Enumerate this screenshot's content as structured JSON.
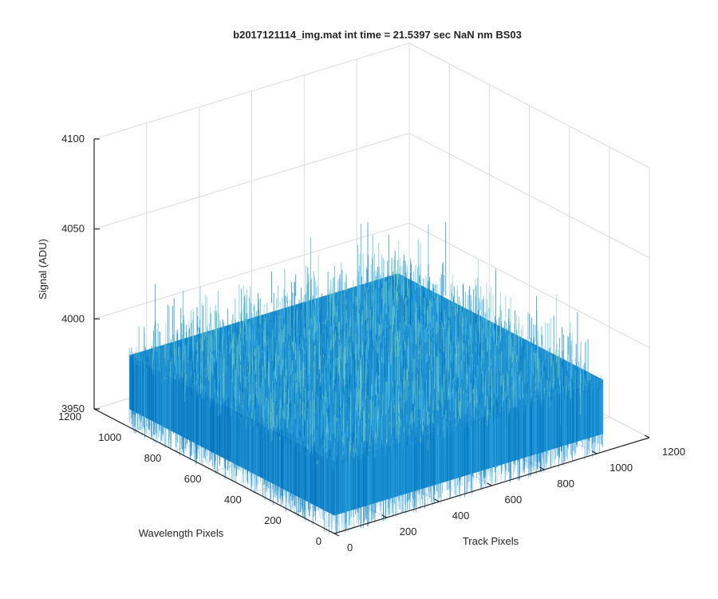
{
  "chart_data": {
    "type": "surface",
    "title": "b2017121114_img.mat int time = 21.5397 sec  NaN nm BS03",
    "xlabel": "Track Pixels",
    "ylabel": "Wavelength Pixels",
    "zlabel": "Signal (ADU)",
    "xlim": [
      0,
      1200
    ],
    "ylim": [
      0,
      1200
    ],
    "zlim": [
      3950,
      4100
    ],
    "x_ticks": [
      "0",
      "200",
      "400",
      "600",
      "800",
      "1000",
      "1200"
    ],
    "y_ticks": [
      "0",
      "200",
      "400",
      "600",
      "800",
      "1000",
      "1200"
    ],
    "z_ticks": [
      "3950",
      "4000",
      "4050",
      "4100"
    ],
    "surface_extent": {
      "x": [
        0,
        1024
      ],
      "y": [
        0,
        1024
      ]
    },
    "signal_mean": 3990,
    "signal_range": [
      3960,
      4030
    ],
    "colormap": [
      "#0072BD",
      "#2EA7E0",
      "#4DBEEE",
      "#7ECFB0"
    ],
    "grid": true
  }
}
